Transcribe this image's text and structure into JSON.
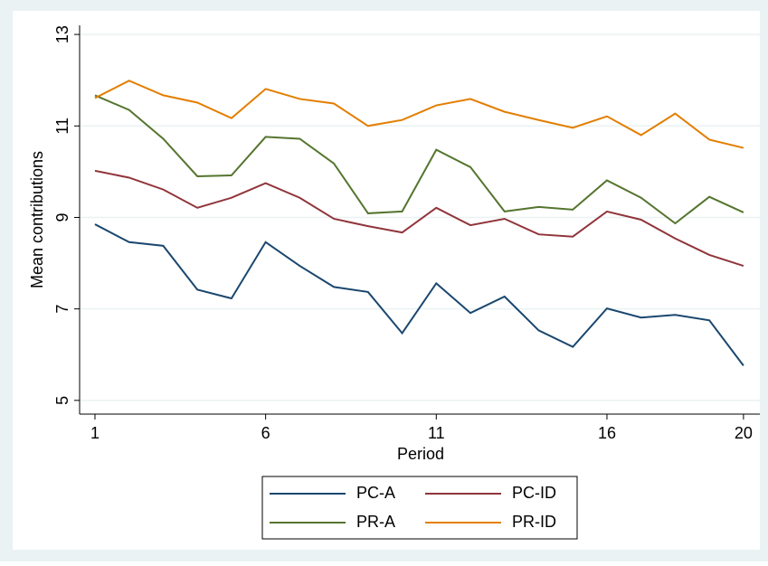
{
  "chart_data": {
    "type": "line",
    "xlabel": "Period",
    "ylabel": "Mean contributions",
    "x": [
      1,
      2,
      3,
      4,
      5,
      6,
      7,
      8,
      9,
      10,
      11,
      12,
      13,
      14,
      15,
      16,
      17,
      18,
      19,
      20
    ],
    "series": [
      {
        "name": "PC-A",
        "color": "#1a476f",
        "values": [
          8.85,
          8.46,
          8.38,
          7.42,
          7.23,
          8.46,
          7.94,
          7.48,
          7.37,
          6.47,
          7.56,
          6.91,
          7.27,
          6.53,
          6.17,
          7.01,
          6.81,
          6.87,
          6.75,
          5.76
        ]
      },
      {
        "name": "PC-ID",
        "color": "#90353b",
        "values": [
          10.02,
          9.87,
          9.61,
          9.21,
          9.43,
          9.75,
          9.43,
          8.97,
          8.81,
          8.67,
          9.21,
          8.83,
          8.97,
          8.63,
          8.58,
          9.13,
          8.95,
          8.54,
          8.18,
          7.94
        ]
      },
      {
        "name": "PR-A",
        "color": "#55752f",
        "values": [
          11.67,
          11.35,
          10.72,
          9.9,
          9.92,
          10.76,
          10.72,
          10.18,
          9.09,
          9.13,
          10.48,
          10.1,
          9.13,
          9.23,
          9.17,
          9.81,
          9.43,
          8.87,
          9.45,
          9.11
        ]
      },
      {
        "name": "PR-ID",
        "color": "#e37e00",
        "values": [
          11.61,
          11.99,
          11.67,
          11.51,
          11.17,
          11.81,
          11.59,
          11.49,
          11.0,
          11.13,
          11.45,
          11.59,
          11.31,
          11.13,
          10.96,
          11.21,
          10.8,
          11.27,
          10.7,
          10.52
        ]
      }
    ],
    "xlim": [
      0.55,
      20.48
    ],
    "xticks": [
      1,
      6,
      11,
      16,
      20
    ],
    "ylim": [
      4.7,
      13.2
    ],
    "yticks": [
      5,
      7,
      9,
      11,
      13
    ],
    "grid": true,
    "legend": "bottom"
  }
}
